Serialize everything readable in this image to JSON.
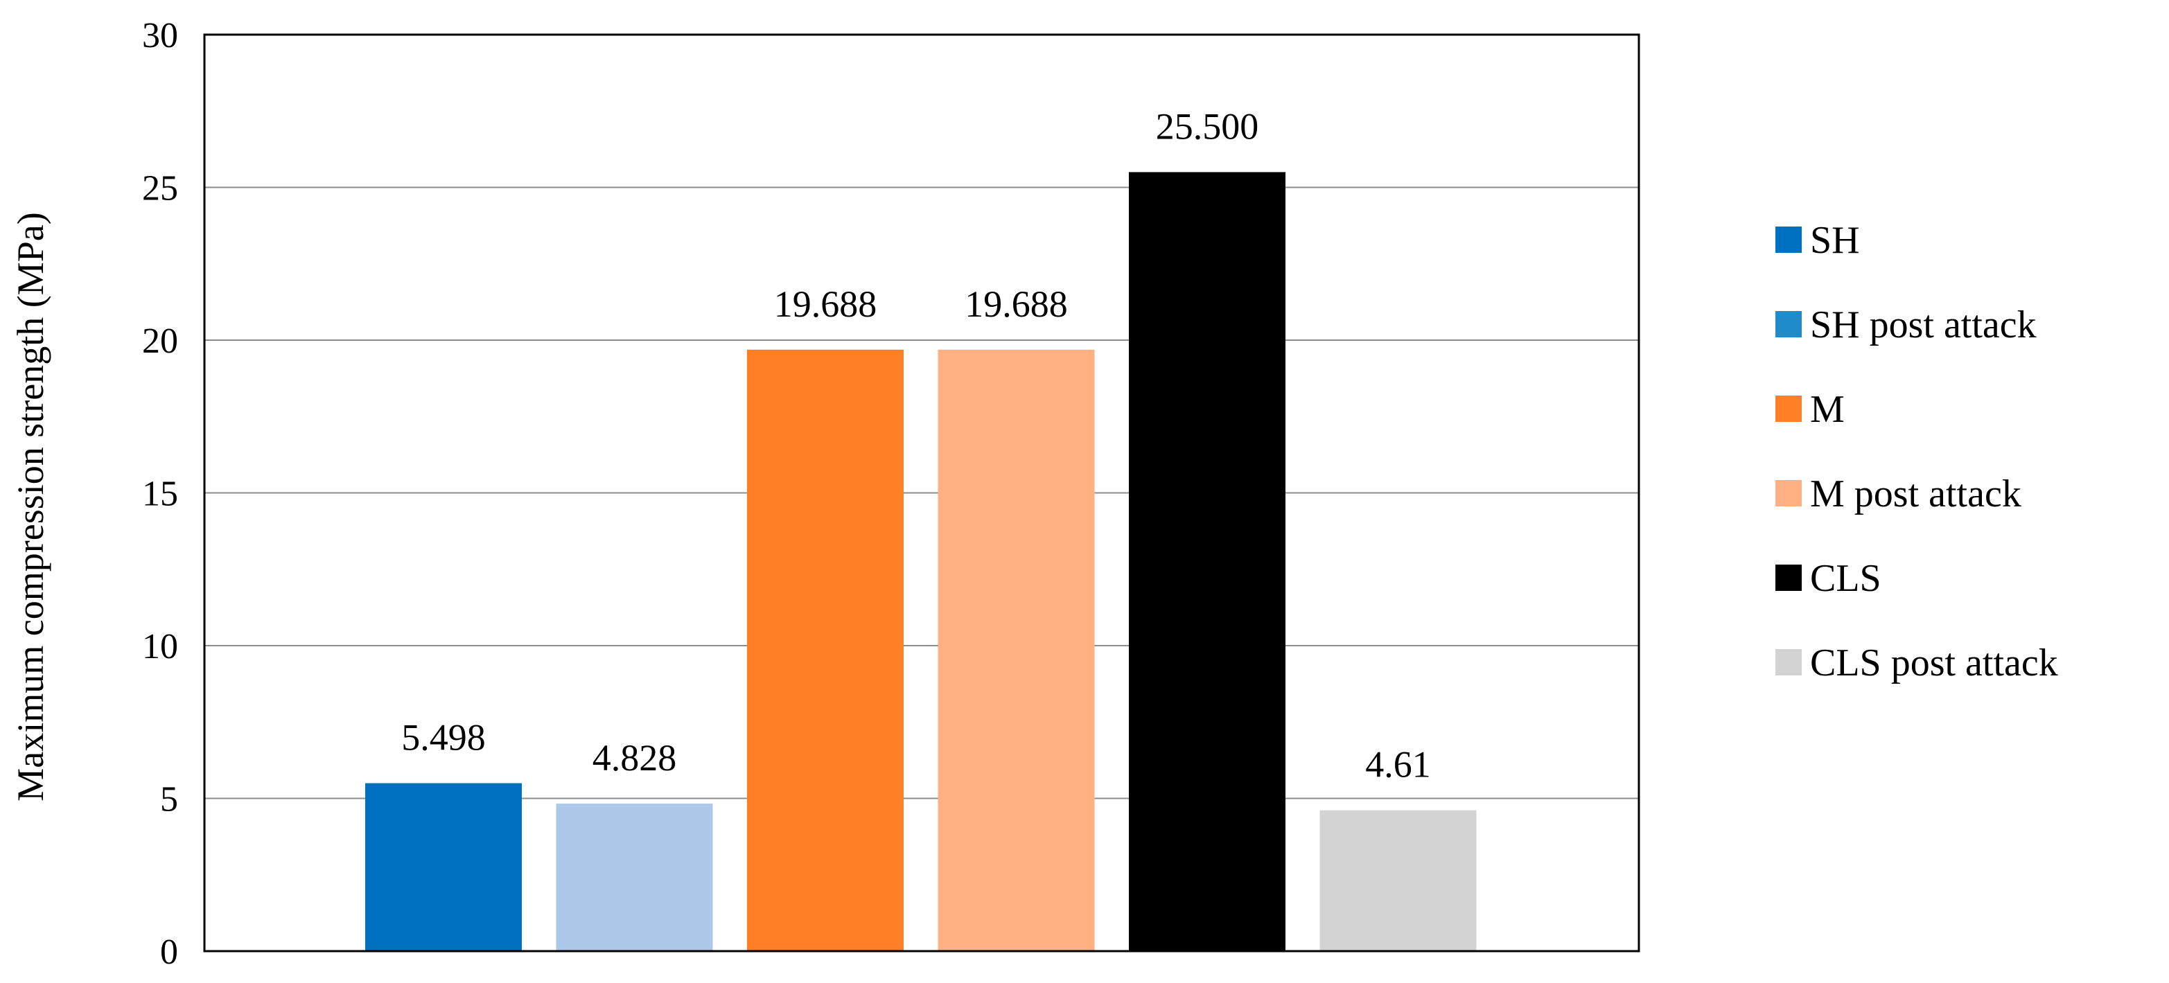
{
  "chart_data": {
    "type": "bar",
    "title": "",
    "xlabel": "",
    "ylabel": "Maximum compression strength (MPa)",
    "ylim": [
      0,
      30
    ],
    "yticks": [
      0,
      5,
      10,
      15,
      20,
      25,
      30
    ],
    "grid": "horizontal",
    "legend_position": "right",
    "series": [
      {
        "name": "SH",
        "value": 5.498,
        "label": "5.498",
        "color": "#0070C0"
      },
      {
        "name": "SH post attack",
        "value": 4.828,
        "label": "4.828",
        "color": "#ADC8E8",
        "legend_color": "#1F8CC9"
      },
      {
        "name": "M",
        "value": 19.688,
        "label": "19.688",
        "color": "#FF7F27"
      },
      {
        "name": "M post attack",
        "value": 19.688,
        "label": "19.688",
        "color": "#FFB183"
      },
      {
        "name": "CLS",
        "value": 25.5,
        "label": "25.500",
        "color": "#000000"
      },
      {
        "name": "CLS post attack",
        "value": 4.61,
        "label": "4.61",
        "color": "#D3D3D3"
      }
    ]
  }
}
